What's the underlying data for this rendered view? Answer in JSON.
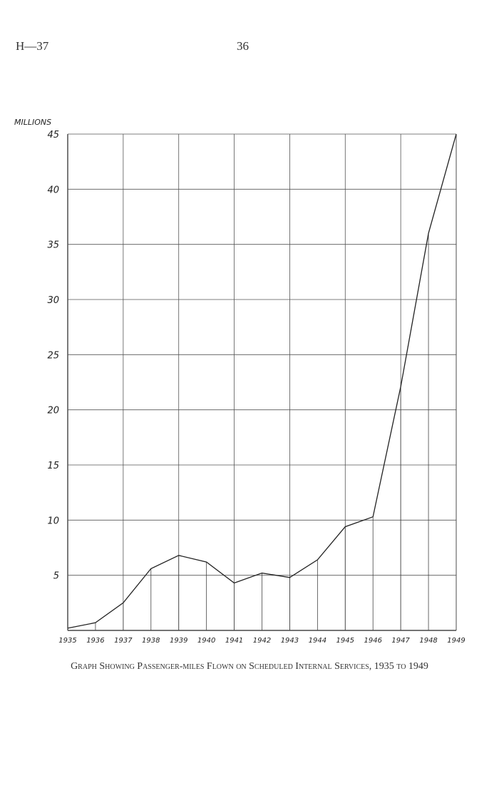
{
  "header": {
    "left": "H—37",
    "page_number": "36"
  },
  "chart_data": {
    "type": "line",
    "y_label": "MILLIONS",
    "caption": "Graph Showing Passenger-miles Flown on Scheduled Internal Services, 1935 to 1949",
    "x": [
      1935,
      1936,
      1937,
      1938,
      1939,
      1940,
      1941,
      1942,
      1943,
      1944,
      1945,
      1946,
      1947,
      1948,
      1949
    ],
    "series": [
      {
        "name": "Passenger-miles",
        "color": "#222222",
        "values": [
          0.2,
          0.7,
          2.5,
          5.6,
          6.8,
          6.2,
          4.3,
          5.2,
          4.8,
          6.4,
          9.4,
          10.3,
          22.1,
          36.0,
          45
        ]
      }
    ],
    "xlim": [
      1935,
      1949
    ],
    "ylim": [
      0,
      45
    ],
    "xticks": [
      1935,
      1936,
      1937,
      1938,
      1939,
      1940,
      1941,
      1942,
      1943,
      1944,
      1945,
      1946,
      1947,
      1948,
      1949
    ],
    "yticks": [
      5,
      10,
      15,
      20,
      25,
      30,
      35,
      40,
      45
    ],
    "grid": true
  }
}
